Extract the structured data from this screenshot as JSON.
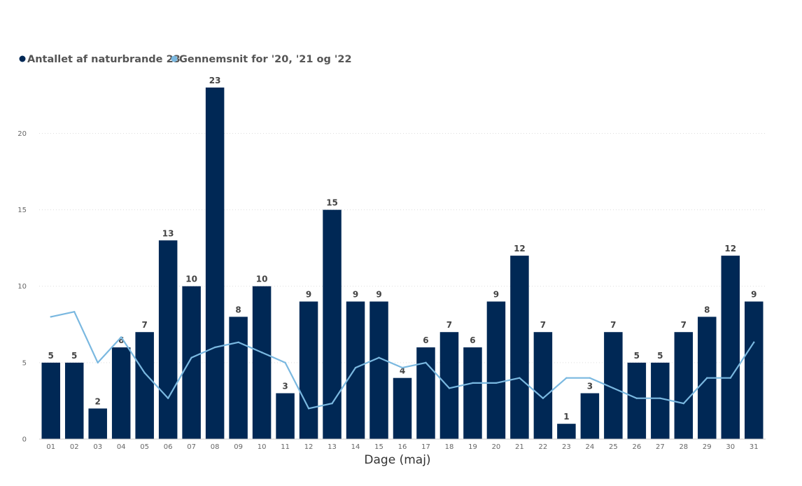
{
  "chart_data": {
    "type": "bar",
    "title": "",
    "xlabel": "Dage (maj)",
    "ylabel": "",
    "ylim": [
      0,
      23
    ],
    "yticks": [
      0,
      5,
      10,
      15,
      20
    ],
    "ytick_labels": [
      "0",
      "5",
      "10",
      "15",
      "20"
    ],
    "grid": true,
    "legend_position": "top-left",
    "categories": [
      "01",
      "02",
      "03",
      "04",
      "05",
      "06",
      "07",
      "08",
      "09",
      "10",
      "11",
      "12",
      "13",
      "14",
      "15",
      "16",
      "17",
      "18",
      "19",
      "20",
      "21",
      "22",
      "23",
      "24",
      "25",
      "26",
      "27",
      "28",
      "29",
      "30",
      "31"
    ],
    "series": [
      {
        "name": "Antallet af naturbrande 23",
        "kind": "bar",
        "color": "#002855",
        "values": [
          5,
          5,
          2,
          6,
          7,
          13,
          10,
          23,
          8,
          10,
          3,
          9,
          15,
          9,
          9,
          4,
          6,
          7,
          6,
          9,
          12,
          7,
          1,
          3,
          7,
          5,
          5,
          7,
          8,
          12,
          9
        ],
        "data_labels": [
          "5",
          "5",
          "2",
          "6",
          "7",
          "13",
          "10",
          "23",
          "8",
          "10",
          "3",
          "9",
          "15",
          "9",
          "9",
          "4",
          "6",
          "7",
          "6",
          "9",
          "12",
          "7",
          "1",
          "3",
          "7",
          "5",
          "5",
          "7",
          "8",
          "12",
          "9"
        ]
      },
      {
        "name": "Gennemsnit for '20, '21 og '22",
        "kind": "line",
        "color": "#7ab8e0",
        "values": [
          8.0,
          8.33,
          5.0,
          6.67,
          4.33,
          2.67,
          5.33,
          6.0,
          6.33,
          5.67,
          5.0,
          2.0,
          2.33,
          4.67,
          5.33,
          4.67,
          5.0,
          3.33,
          3.67,
          3.67,
          4.0,
          2.67,
          4.0,
          4.0,
          3.33,
          2.67,
          2.67,
          2.33,
          4.0,
          4.0,
          6.33
        ]
      }
    ]
  }
}
